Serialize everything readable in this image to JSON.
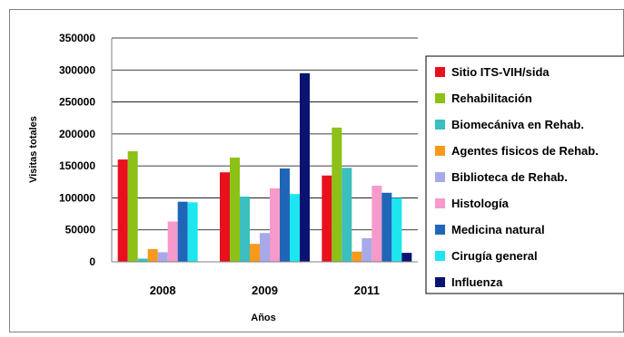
{
  "chart_data": {
    "type": "bar",
    "title": "",
    "xlabel": "Años",
    "ylabel": "Visitas totales",
    "ylim": [
      0,
      350000
    ],
    "yticks": [
      0,
      50000,
      100000,
      150000,
      200000,
      250000,
      300000,
      350000
    ],
    "ytick_labels": [
      "0",
      "50000",
      "100000",
      "150000",
      "200000",
      "250000",
      "300000",
      "350000"
    ],
    "grid": true,
    "legend_position": "right",
    "categories": [
      "2008",
      "2009",
      "2011"
    ],
    "series": [
      {
        "name": "Sitio ITS-VIH/sida",
        "color": "#e8101c",
        "values": [
          160000,
          140000,
          135000
        ]
      },
      {
        "name": "Rehabilitación",
        "color": "#8cc218",
        "values": [
          173000,
          163000,
          210000
        ]
      },
      {
        "name": "Biomecániva en Rehab.",
        "color": "#3bbfbf",
        "values": [
          5000,
          102000,
          147000
        ]
      },
      {
        "name": "Agentes fisicos de Rehab.",
        "color": "#f79a1c",
        "values": [
          20000,
          28000,
          16000
        ]
      },
      {
        "name": "Biblioteca de Rehab.",
        "color": "#a7a9e8",
        "values": [
          15000,
          45000,
          37000
        ]
      },
      {
        "name": "Histología",
        "color": "#f59acb",
        "values": [
          63000,
          115000,
          119000
        ]
      },
      {
        "name": "Medicina natural",
        "color": "#1f66b8",
        "values": [
          94000,
          146000,
          108000
        ]
      },
      {
        "name": "Cirugía general",
        "color": "#1ee6f0",
        "values": [
          93000,
          106000,
          100000
        ]
      },
      {
        "name": "Influenza",
        "color": "#0a1470",
        "values": [
          0,
          295000,
          14000
        ]
      }
    ]
  }
}
